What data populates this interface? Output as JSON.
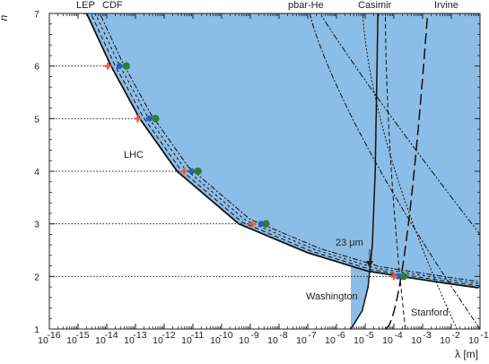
{
  "chart_data": {
    "type": "line",
    "title": "",
    "xlabel": "λ [m]",
    "ylabel": "n",
    "xscale": "log",
    "xlim": [
      1e-16,
      0.1
    ],
    "ylim": [
      1,
      7
    ],
    "x_tick_labels": [
      "10",
      "10",
      "10",
      "10",
      "10",
      "10",
      "10",
      "10",
      "10",
      "10",
      "10",
      "10",
      "10",
      "10",
      "10",
      "10"
    ],
    "x_tick_exponents": [
      "-16",
      "-15",
      "-14",
      "-13",
      "-12",
      "-11",
      "-10",
      "-9",
      "-8",
      "-7",
      "-6",
      "-5",
      "-4",
      "-3",
      "-2",
      "-1"
    ],
    "y_tick_labels": [
      "1",
      "2",
      "3",
      "4",
      "5",
      "6",
      "7"
    ],
    "top_labels": [
      "LEP",
      "CDF",
      "pbar-He",
      "Casimir",
      "Irvine"
    ],
    "annotations": {
      "lhc": "LHC",
      "arrow_label": "23 μm",
      "washington": "Washington",
      "stanford": "Stanford"
    },
    "excluded_region_color": "#8cbde6",
    "points": [
      {
        "n": 6,
        "lambda_red": 1.1e-14,
        "lambda_blue": 2.8e-14,
        "lambda_green": 4.8e-14
      },
      {
        "n": 5,
        "lambda_red": 1.2e-13,
        "lambda_blue": 3e-13,
        "lambda_green": 5e-13
      },
      {
        "n": 4,
        "lambda_red": 5e-12,
        "lambda_blue": 9e-12,
        "lambda_green": 1.5e-11
      },
      {
        "n": 3,
        "lambda_red": 1.2e-09,
        "lambda_blue": 2.4e-09,
        "lambda_green": 3.5e-09
      },
      {
        "n": 2,
        "lambda_red": 0.0001,
        "lambda_blue": 0.00014,
        "lambda_green": 0.00022
      }
    ],
    "colors": {
      "red": "#f05a3c",
      "blue": "#2b5fb4",
      "green": "#2e7d32"
    }
  }
}
